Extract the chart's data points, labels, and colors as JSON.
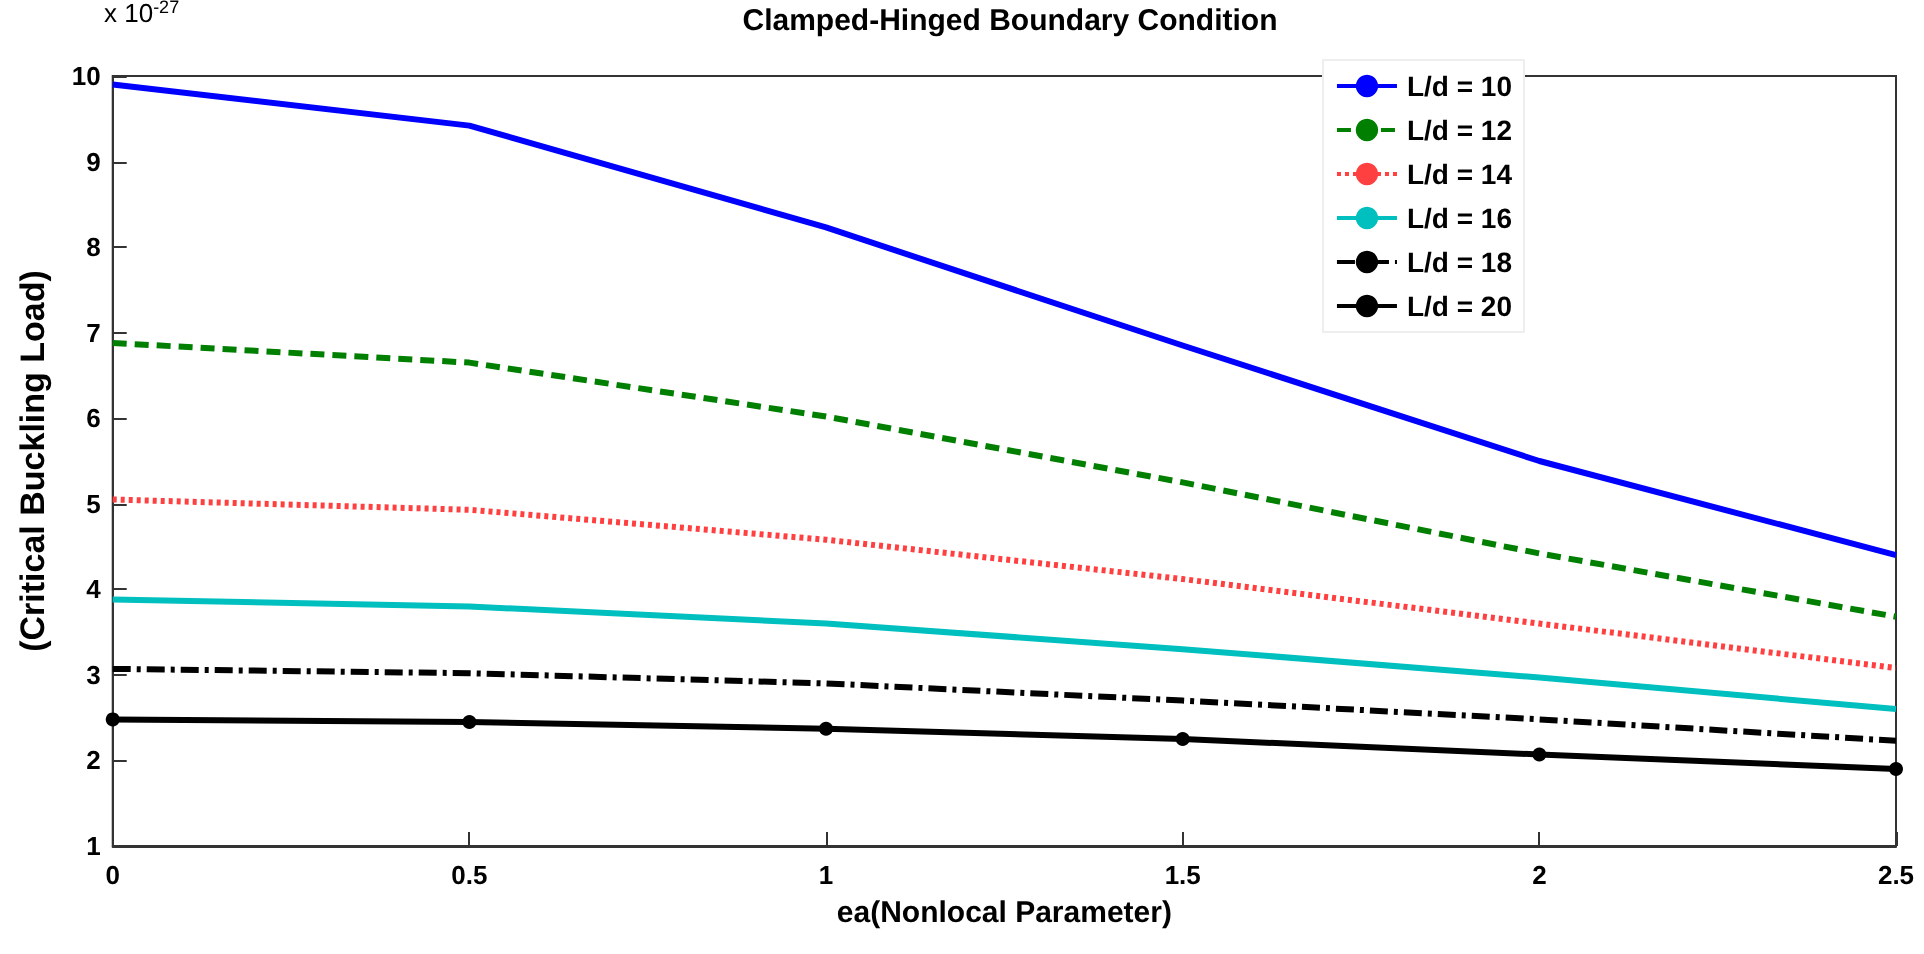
{
  "chart_data": {
    "type": "line",
    "title": "Clamped-Hinged Boundary Condition",
    "xlabel": "ea(Nonlocal Parameter)",
    "ylabel": "(Critical Buckling Load)",
    "annotations": [
      "x 10$^{-27}$"
    ],
    "x": [
      0,
      0.5,
      1,
      1.5,
      2,
      2.5
    ],
    "xlim": [
      0,
      2.5
    ],
    "xticks": [
      0,
      0.5,
      1,
      1.5,
      2,
      2.5
    ],
    "ylim": [
      1,
      10
    ],
    "yticks": [
      1,
      2,
      3,
      4,
      5,
      6,
      7,
      8,
      9,
      10
    ],
    "grid": false,
    "legend": "top right",
    "series": [
      {
        "name": "L/d = 10",
        "color": "#0000ff",
        "line_style": "solid",
        "marker": "none",
        "values": [
          9.9,
          9.42,
          8.23,
          6.85,
          5.5,
          4.4
        ]
      },
      {
        "name": "L/d = 12",
        "color": "#007f00",
        "line_style": "dashed",
        "marker": "none",
        "values": [
          6.88,
          6.65,
          6.02,
          5.25,
          4.42,
          3.68
        ]
      },
      {
        "name": "L/d = 14",
        "color": "#ff4040",
        "line_style": "dotted",
        "marker": "none",
        "values": [
          5.05,
          4.93,
          4.58,
          4.12,
          3.6,
          3.08
        ]
      },
      {
        "name": "L/d = 16",
        "color": "#00bfbf",
        "line_style": "solid",
        "marker": "none",
        "values": [
          3.88,
          3.8,
          3.6,
          3.3,
          2.97,
          2.6
        ]
      },
      {
        "name": "L/d = 18",
        "color": "#000000",
        "line_style": "dashdot",
        "marker": "none",
        "values": [
          3.07,
          3.02,
          2.9,
          2.7,
          2.48,
          2.23
        ]
      },
      {
        "name": "L/d = 20",
        "color": "#000000",
        "line_style": "solid",
        "marker": "circle",
        "values": [
          2.48,
          2.45,
          2.37,
          2.25,
          2.07,
          1.9
        ]
      }
    ]
  }
}
